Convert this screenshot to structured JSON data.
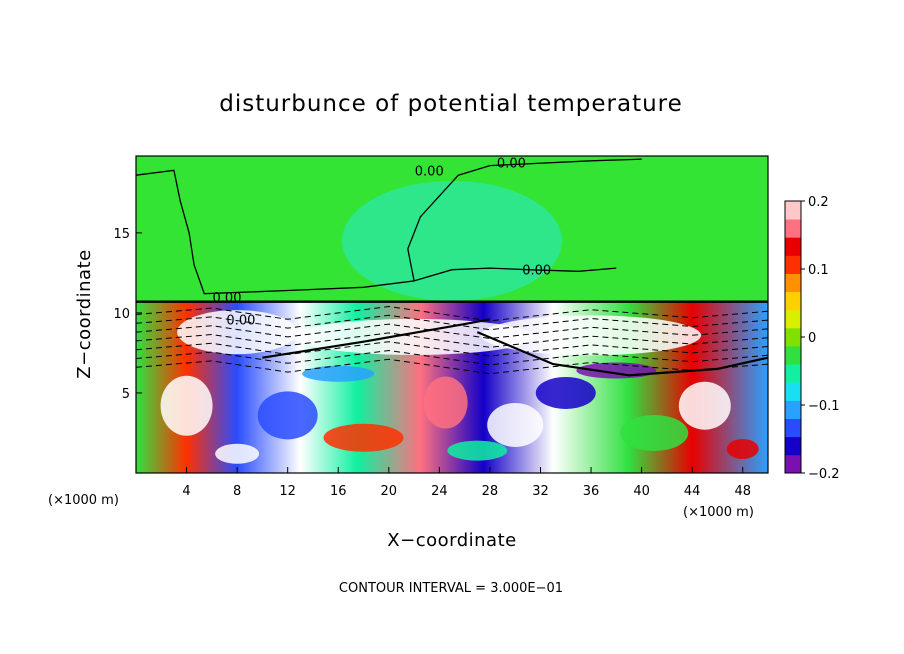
{
  "chart_data": {
    "type": "heatmap",
    "title": "disturbunce of potential temperature",
    "xlabel": "X−coordinate",
    "ylabel": "Z−coordinate",
    "x_unit": "(×1000 m)",
    "y_unit": "(×1000 m)",
    "footnote": "CONTOUR INTERVAL = 3.000E−01",
    "xlim": [
      0,
      50
    ],
    "ylim": [
      0,
      19.8
    ],
    "x_ticks": [
      4,
      8,
      12,
      16,
      20,
      24,
      28,
      32,
      36,
      40,
      44,
      48
    ],
    "y_ticks": [
      5,
      10,
      15
    ],
    "colorbar": {
      "range": [
        -0.2,
        0.2
      ],
      "tick_values": [
        0.2,
        0.1,
        0,
        -0.1,
        -0.2
      ],
      "tick_labels": [
        "0.2",
        "0.1",
        "0",
        "−0.1",
        "−0.2"
      ],
      "colors": [
        "#7a10b0",
        "#1400c8",
        "#2a4cff",
        "#2aa0ff",
        "#18e0f0",
        "#10f0a0",
        "#30e040",
        "#80e000",
        "#d8f000",
        "#ffd000",
        "#ff9000",
        "#ff3000",
        "#e80000",
        "#ff7080",
        "#ffc8c8"
      ]
    },
    "contour_labels": [
      {
        "text": "0.00",
        "x": 23.2,
        "y": 18.9
      },
      {
        "text": "0.00",
        "x": 29.7,
        "y": 19.4
      },
      {
        "text": "0.00",
        "x": 31.7,
        "y": 12.7
      },
      {
        "text": "0.00",
        "x": 7.2,
        "y": 11.0
      },
      {
        "text": "0.00",
        "x": 8.3,
        "y": 9.6
      }
    ],
    "description_levels": {
      "upper_region_z_above": 10.7,
      "upper_region_value": 0,
      "lower_region_range": [
        -0.2,
        0.2
      ]
    }
  }
}
